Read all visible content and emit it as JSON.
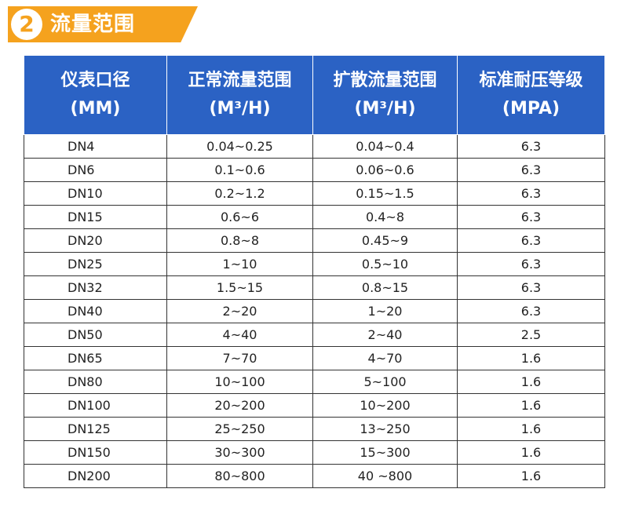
{
  "section": {
    "number": "2",
    "title": "流量范围"
  },
  "table": {
    "headers": [
      {
        "line1": "仪表口径",
        "line2": "(MM)"
      },
      {
        "line1": "正常流量范围",
        "line2": "(M³/H)"
      },
      {
        "line1": "扩散流量范围",
        "line2": "(M³/H)"
      },
      {
        "line1": "标准耐压等级",
        "line2": "(MPA)"
      }
    ],
    "rows": [
      [
        "DN4",
        "0.04~0.25",
        "0.04~0.4",
        "6.3"
      ],
      [
        "DN6",
        "0.1~0.6",
        "0.06~0.6",
        "6.3"
      ],
      [
        "DN10",
        "0.2~1.2",
        "0.15~1.5",
        "6.3"
      ],
      [
        "DN15",
        "0.6~6",
        "0.4~8",
        "6.3"
      ],
      [
        "DN20",
        "0.8~8",
        "0.45~9",
        "6.3"
      ],
      [
        "DN25",
        "1~10",
        "0.5~10",
        "6.3"
      ],
      [
        "DN32",
        "1.5~15",
        "0.8~15",
        "6.3"
      ],
      [
        "DN40",
        "2~20",
        "1~20",
        "6.3"
      ],
      [
        "DN50",
        "4~40",
        "2~40",
        "2.5"
      ],
      [
        "DN65",
        "7~70",
        "4~70",
        "1.6"
      ],
      [
        "DN80",
        "10~100",
        "5~100",
        "1.6"
      ],
      [
        "DN100",
        "20~200",
        "10~200",
        "1.6"
      ],
      [
        "DN125",
        "25~250",
        "13~250",
        "1.6"
      ],
      [
        "DN150",
        "30~300",
        "15~300",
        "1.6"
      ],
      [
        "DN200",
        "80~800",
        "40 ~800",
        "1.6"
      ]
    ]
  },
  "colors": {
    "accent": "#f5a21e",
    "header_bg": "#2b62c4",
    "border": "#333333"
  }
}
